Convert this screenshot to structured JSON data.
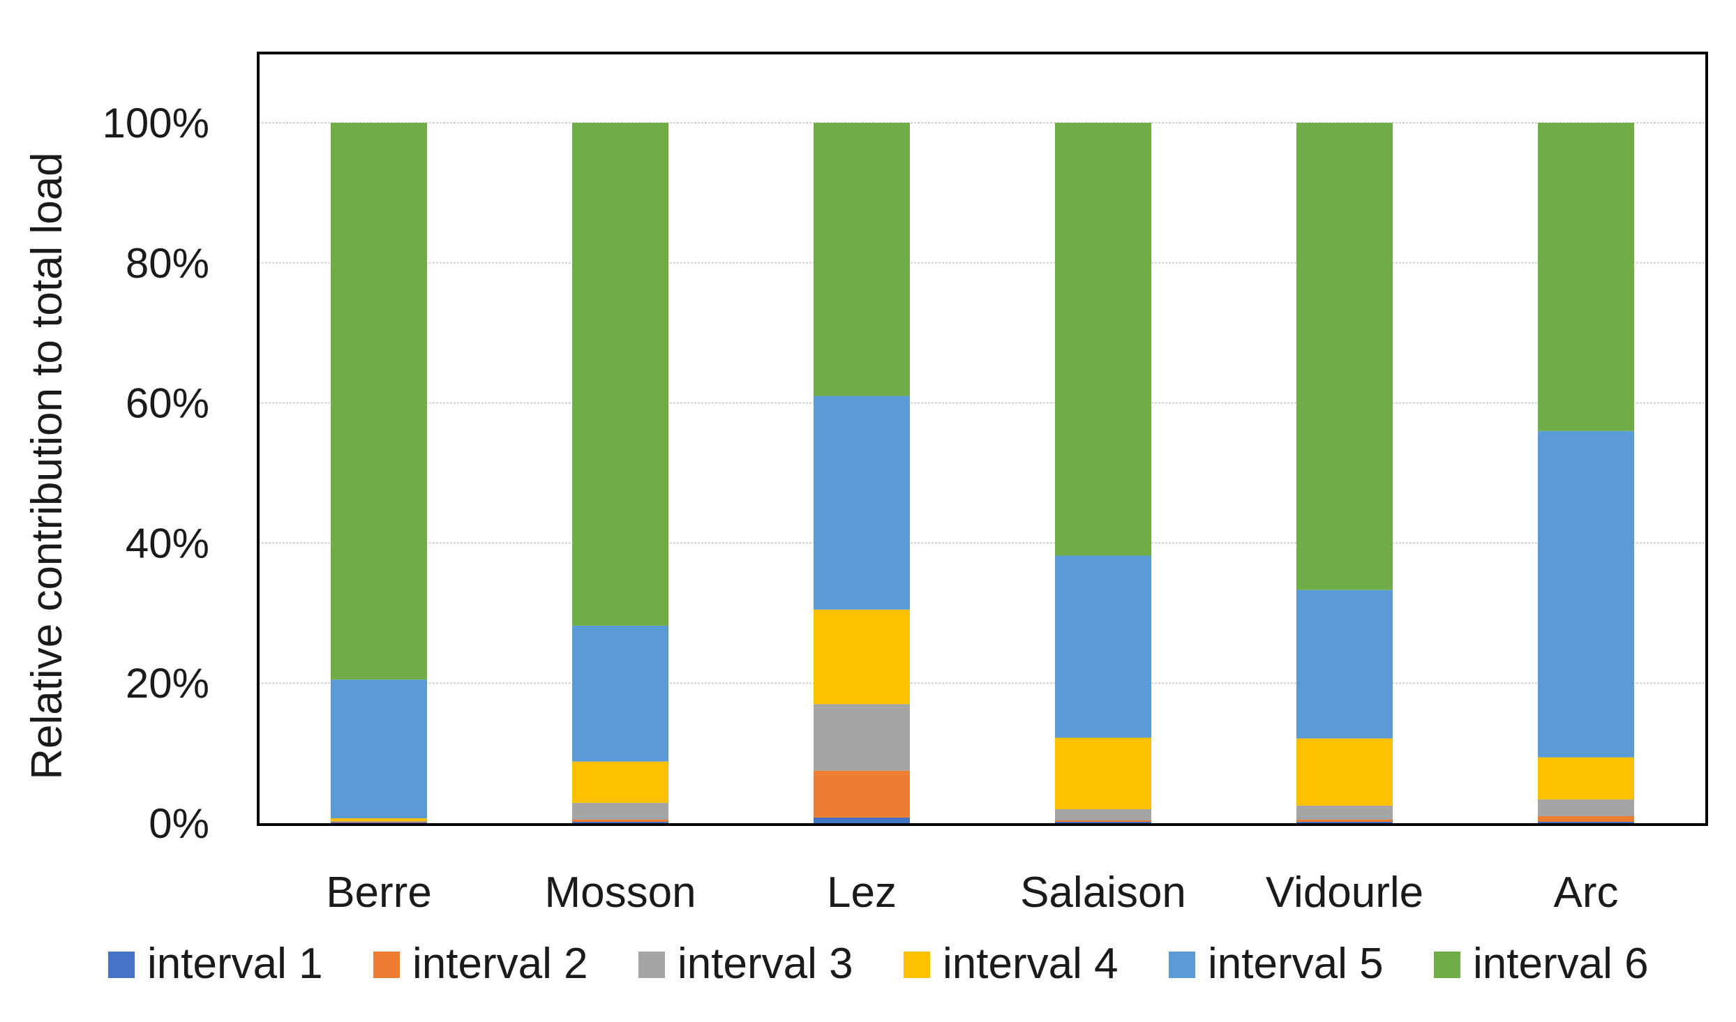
{
  "chart_data": {
    "type": "bar",
    "stacked": true,
    "normalized": true,
    "title": "",
    "xlabel": "",
    "ylabel": "Relative contribution to total load",
    "ylim": [
      0,
      100
    ],
    "y_ticks": [
      "0%",
      "20%",
      "40%",
      "60%",
      "80%",
      "100%"
    ],
    "y_tick_values": [
      0,
      20,
      40,
      60,
      80,
      100
    ],
    "grid": true,
    "legend_position": "bottom",
    "categories": [
      "Berre",
      "Mosson",
      "Lez",
      "Salaison",
      "Vidourle",
      "Arc"
    ],
    "series": [
      {
        "name": "interval 1",
        "color": "#4472C4",
        "values": [
          0.1,
          0.2,
          0.8,
          0.2,
          0.2,
          0.2
        ]
      },
      {
        "name": "interval 2",
        "color": "#ED7D31",
        "values": [
          0.1,
          0.3,
          6.7,
          0.2,
          0.3,
          0.8
        ]
      },
      {
        "name": "interval 3",
        "color": "#A5A5A5",
        "values": [
          0.1,
          2.4,
          9.5,
          1.6,
          2.0,
          2.4
        ]
      },
      {
        "name": "interval 4",
        "color": "#FFC000",
        "values": [
          0.4,
          5.9,
          13.5,
          10.2,
          9.6,
          6.0
        ]
      },
      {
        "name": "interval 5",
        "color": "#5B9BD5",
        "values": [
          19.8,
          19.4,
          30.5,
          26.0,
          21.2,
          46.6
        ]
      },
      {
        "name": "interval 6",
        "color": "#70AD47",
        "values": [
          79.5,
          71.8,
          39.0,
          61.8,
          66.7,
          44.0
        ]
      }
    ]
  }
}
